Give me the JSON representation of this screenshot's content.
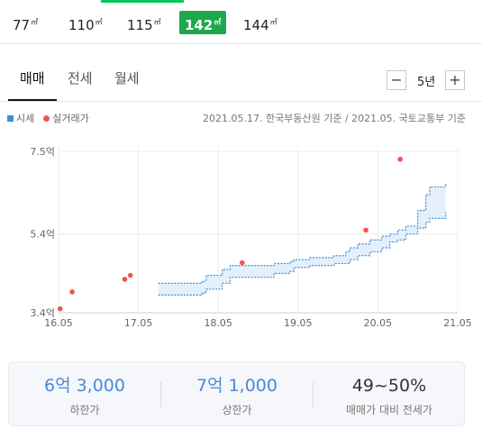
{
  "area_tabs": [
    {
      "label": "77",
      "unit": "㎡",
      "active": false
    },
    {
      "label": "110",
      "unit": "㎡",
      "active": false
    },
    {
      "label": "115",
      "unit": "㎡",
      "active": false
    },
    {
      "label": "142",
      "unit": "㎡",
      "active": true
    },
    {
      "label": "144",
      "unit": "㎡",
      "active": false
    }
  ],
  "deal_tabs": [
    "매매",
    "전세",
    "월세"
  ],
  "period": {
    "minus": "−",
    "label": "5년",
    "plus": "+"
  },
  "legend": {
    "market": "시세",
    "actual": "실거래가"
  },
  "source": "2021.05.17. 한국부동산원 기준 / 2021.05. 국토교통부 기준",
  "colors": {
    "accent_green": "#1ea84c",
    "band_line": "#3a8fd9",
    "band_fill": "#e3f0fb",
    "deal_dot": "#f05454",
    "stat_blue": "#4a8ad8"
  },
  "chart_data": {
    "type": "area",
    "x_ticks": [
      "16.05",
      "17.05",
      "18.05",
      "19.05",
      "20.05",
      "21.05"
    ],
    "y_ticks": [
      "3.4억",
      "5.4억",
      "7.5억"
    ],
    "y_tick_values": [
      3.4,
      5.4,
      7.5
    ],
    "xlim": [
      2016.4,
      2021.4
    ],
    "ylim": [
      3.4,
      7.5
    ],
    "grid": true,
    "series": [
      {
        "name": "시세",
        "kind": "band",
        "x": [
          2017.65,
          2018.1,
          2018.2,
          2018.25,
          2018.45,
          2018.55,
          2019.0,
          2019.1,
          2019.3,
          2019.35,
          2019.55,
          2019.75,
          2019.85,
          2020.0,
          2020.05,
          2020.15,
          2020.3,
          2020.45,
          2020.55,
          2020.65,
          2020.75,
          2020.9,
          2021.0,
          2021.05,
          2021.25
        ],
        "low": [
          3.85,
          3.85,
          3.9,
          4.0,
          4.15,
          4.3,
          4.3,
          4.4,
          4.45,
          4.55,
          4.6,
          4.6,
          4.65,
          4.65,
          4.75,
          4.85,
          4.95,
          5.05,
          5.2,
          5.25,
          5.4,
          5.55,
          5.7,
          5.8,
          5.95
        ],
        "high": [
          4.15,
          4.15,
          4.2,
          4.35,
          4.5,
          4.6,
          4.6,
          4.65,
          4.7,
          4.75,
          4.8,
          4.8,
          4.85,
          4.95,
          5.05,
          5.15,
          5.25,
          5.35,
          5.4,
          5.5,
          5.6,
          6.0,
          6.4,
          6.6,
          6.7
        ]
      },
      {
        "name": "실거래가",
        "kind": "points",
        "x": [
          2016.42,
          2016.57,
          2017.23,
          2017.3,
          2018.7,
          2020.25,
          2020.68
        ],
        "y": [
          3.5,
          3.93,
          4.25,
          4.35,
          4.67,
          5.5,
          7.3
        ]
      }
    ]
  },
  "summary": [
    {
      "value": "6억 3,000",
      "label": "하한가"
    },
    {
      "value": "7억 1,000",
      "label": "상한가"
    },
    {
      "value": "49~50%",
      "label": "매매가 대비 전세가"
    }
  ]
}
